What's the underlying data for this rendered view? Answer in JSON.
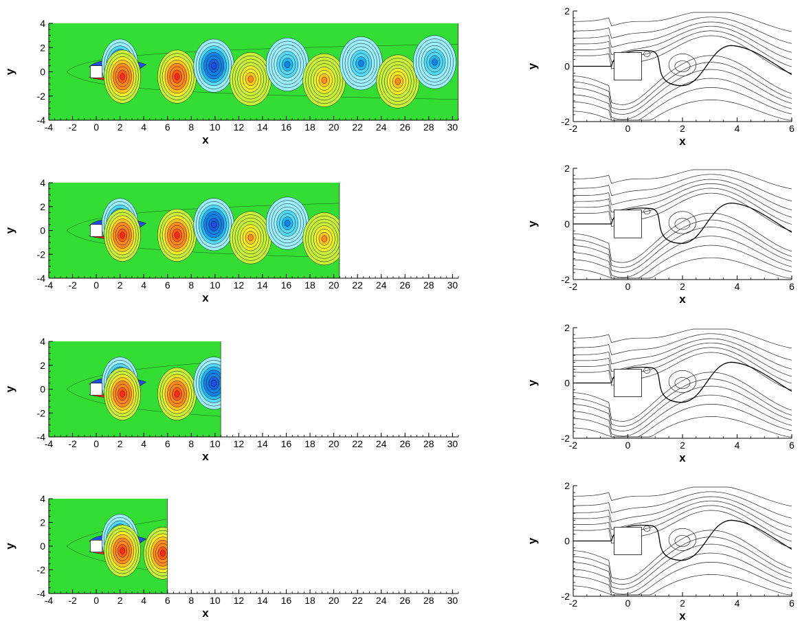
{
  "colors": {
    "background": "#33dd33",
    "negative_vortex": "#1f4fe0",
    "positive_vortex": "#ff2a1a",
    "contour_line": "#000000",
    "streamline": "#222222",
    "axis": "#000000"
  },
  "chart_data": [
    {
      "type": "contour",
      "panel": "vorticity",
      "xlabel": "x",
      "ylabel": "y",
      "xlim": [
        -4,
        30.5
      ],
      "ylim": [
        -4,
        4
      ],
      "xticks": [
        "-4",
        "-2",
        "0",
        "2",
        "4",
        "6",
        "8",
        "10",
        "12",
        "14",
        "16",
        "18",
        "20",
        "22",
        "24",
        "26",
        "28",
        "30"
      ],
      "yticks": [
        "-4",
        "-2",
        "0",
        "2",
        "4"
      ],
      "domain_x_end": 30.5,
      "body": {
        "x": [
          -0.5,
          0.5
        ],
        "y": [
          -0.5,
          0.5
        ]
      },
      "vortices": [
        {
          "x": 2.0,
          "y": 0.5,
          "sign": -1
        },
        {
          "x": 2.2,
          "y": -0.4,
          "sign": 1
        },
        {
          "x": 6.8,
          "y": -0.4,
          "sign": 1
        },
        {
          "x": 9.9,
          "y": 0.5,
          "sign": -1
        },
        {
          "x": 13.0,
          "y": -0.6,
          "sign": 1
        },
        {
          "x": 16.1,
          "y": 0.6,
          "sign": -1
        },
        {
          "x": 19.2,
          "y": -0.7,
          "sign": 1
        },
        {
          "x": 22.3,
          "y": 0.7,
          "sign": -1
        },
        {
          "x": 25.4,
          "y": -0.8,
          "sign": 1
        },
        {
          "x": 28.5,
          "y": 0.8,
          "sign": -1
        }
      ]
    },
    {
      "type": "contour",
      "panel": "vorticity",
      "xlabel": "x",
      "ylabel": "y",
      "xlim": [
        -4,
        30.5
      ],
      "ylim": [
        -4,
        4
      ],
      "xticks": [
        "-4",
        "-2",
        "0",
        "2",
        "4",
        "6",
        "8",
        "10",
        "12",
        "14",
        "16",
        "18",
        "20",
        "22",
        "24",
        "26",
        "28",
        "30"
      ],
      "yticks": [
        "-4",
        "-2",
        "0",
        "2",
        "4"
      ],
      "domain_x_end": 20.5,
      "body": {
        "x": [
          -0.5,
          0.5
        ],
        "y": [
          -0.5,
          0.5
        ]
      },
      "vortices": [
        {
          "x": 2.0,
          "y": 0.5,
          "sign": -1
        },
        {
          "x": 2.2,
          "y": -0.4,
          "sign": 1
        },
        {
          "x": 6.8,
          "y": -0.4,
          "sign": 1
        },
        {
          "x": 9.9,
          "y": 0.5,
          "sign": -1
        },
        {
          "x": 13.0,
          "y": -0.6,
          "sign": 1
        },
        {
          "x": 16.1,
          "y": 0.6,
          "sign": -1
        },
        {
          "x": 19.2,
          "y": -0.7,
          "sign": 1
        }
      ]
    },
    {
      "type": "contour",
      "panel": "vorticity",
      "xlabel": "x",
      "ylabel": "y",
      "xlim": [
        -4,
        30.5
      ],
      "ylim": [
        -4,
        4
      ],
      "xticks": [
        "-4",
        "-2",
        "0",
        "2",
        "4",
        "6",
        "8",
        "10",
        "12",
        "14",
        "16",
        "18",
        "20",
        "22",
        "24",
        "26",
        "28",
        "30"
      ],
      "yticks": [
        "-4",
        "-2",
        "0",
        "2",
        "4"
      ],
      "domain_x_end": 10.5,
      "body": {
        "x": [
          -0.5,
          0.5
        ],
        "y": [
          -0.5,
          0.5
        ]
      },
      "vortices": [
        {
          "x": 2.0,
          "y": 0.5,
          "sign": -1
        },
        {
          "x": 2.2,
          "y": -0.4,
          "sign": 1
        },
        {
          "x": 6.8,
          "y": -0.4,
          "sign": 1
        },
        {
          "x": 9.9,
          "y": 0.5,
          "sign": -1
        }
      ]
    },
    {
      "type": "contour",
      "panel": "vorticity",
      "xlabel": "x",
      "ylabel": "y",
      "xlim": [
        -4,
        30.5
      ],
      "ylim": [
        -4,
        4
      ],
      "xticks": [
        "-4",
        "-2",
        "0",
        "2",
        "4",
        "6",
        "8",
        "10",
        "12",
        "14",
        "16",
        "18",
        "20",
        "22",
        "24",
        "26",
        "28",
        "30"
      ],
      "yticks": [
        "-4",
        "-2",
        "0",
        "2",
        "4"
      ],
      "domain_x_end": 6.0,
      "body": {
        "x": [
          -0.5,
          0.5
        ],
        "y": [
          -0.5,
          0.5
        ]
      },
      "vortices": [
        {
          "x": 2.0,
          "y": 0.5,
          "sign": -1
        },
        {
          "x": 2.2,
          "y": -0.4,
          "sign": 1
        },
        {
          "x": 5.6,
          "y": -0.6,
          "sign": 1
        }
      ]
    },
    {
      "type": "streamline",
      "panel": "streamlines",
      "xlabel": "x",
      "ylabel": "y",
      "xlim": [
        -2,
        6
      ],
      "ylim": [
        -2,
        2
      ],
      "xticks": [
        "-2",
        "0",
        "2",
        "4",
        "6"
      ],
      "yticks": [
        "-2",
        "0",
        "2"
      ],
      "body": {
        "x": [
          -0.5,
          0.5
        ],
        "y": [
          -0.5,
          0.5
        ]
      }
    },
    {
      "type": "streamline",
      "panel": "streamlines",
      "xlabel": "x",
      "ylabel": "y",
      "xlim": [
        -2,
        6
      ],
      "ylim": [
        -2,
        2
      ],
      "xticks": [
        "-2",
        "0",
        "2",
        "4",
        "6"
      ],
      "yticks": [
        "-2",
        "0",
        "2"
      ],
      "body": {
        "x": [
          -0.5,
          0.5
        ],
        "y": [
          -0.5,
          0.5
        ]
      }
    },
    {
      "type": "streamline",
      "panel": "streamlines",
      "xlabel": "x",
      "ylabel": "y",
      "xlim": [
        -2,
        6
      ],
      "ylim": [
        -2,
        2
      ],
      "xticks": [
        "-2",
        "0",
        "2",
        "4",
        "6"
      ],
      "yticks": [
        "-2",
        "0",
        "2"
      ],
      "body": {
        "x": [
          -0.5,
          0.5
        ],
        "y": [
          -0.5,
          0.5
        ]
      }
    },
    {
      "type": "streamline",
      "panel": "streamlines",
      "xlabel": "x",
      "ylabel": "y",
      "xlim": [
        -2,
        6
      ],
      "ylim": [
        -2,
        2
      ],
      "xticks": [
        "-2",
        "0",
        "2",
        "4",
        "6"
      ],
      "yticks": [
        "-2",
        "0",
        "2"
      ],
      "body": {
        "x": [
          -0.5,
          0.5
        ],
        "y": [
          -0.5,
          0.5
        ]
      }
    }
  ]
}
